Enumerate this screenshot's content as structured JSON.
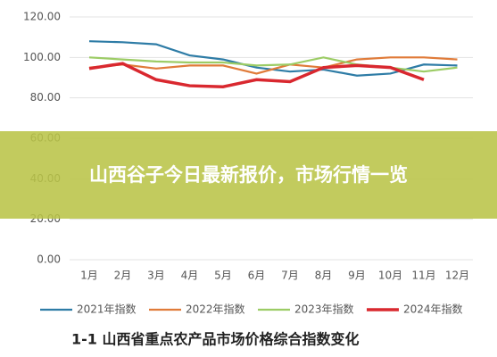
{
  "chart_data": {
    "type": "line",
    "categories": [
      "1月",
      "2月",
      "3月",
      "4月",
      "5月",
      "6月",
      "7月",
      "8月",
      "9月",
      "10月",
      "11月",
      "12月"
    ],
    "series": [
      {
        "name": "2021年指数",
        "color": "#2e7ca6",
        "values": [
          108,
          107.5,
          106.5,
          101,
          99,
          95,
          93,
          94,
          91,
          92,
          96.5,
          96
        ]
      },
      {
        "name": "2022年指数",
        "color": "#e07b39",
        "values": [
          95,
          96.5,
          94.5,
          96,
          96,
          92,
          96.5,
          95,
          99,
          100,
          100,
          99
        ]
      },
      {
        "name": "2023年指数",
        "color": "#9ccc65",
        "values": [
          100,
          99,
          98,
          97.5,
          97.5,
          96,
          96.5,
          100,
          96.5,
          95,
          93,
          95
        ]
      },
      {
        "name": "2024年指数",
        "color": "#d9282f",
        "values": [
          94.5,
          97,
          89,
          86,
          85.5,
          89,
          88,
          95,
          96,
          95,
          89,
          null
        ]
      }
    ],
    "ylim": [
      0,
      120
    ],
    "yticks": [
      {
        "value": 0,
        "label": "0.00"
      },
      {
        "value": 20,
        "label": "20.00"
      },
      {
        "value": 40,
        "label": "40.00"
      },
      {
        "value": 60,
        "label": "60.00"
      },
      {
        "value": 80,
        "label": "80.00"
      },
      {
        "value": 100,
        "label": "100.00"
      },
      {
        "value": 120,
        "label": "120.00"
      }
    ],
    "grid": true
  },
  "banner": {
    "title": "山西谷子今日最新报价，市场行情一览"
  },
  "caption": "1-1 山西省重点农产品市场价格综合指数变化"
}
